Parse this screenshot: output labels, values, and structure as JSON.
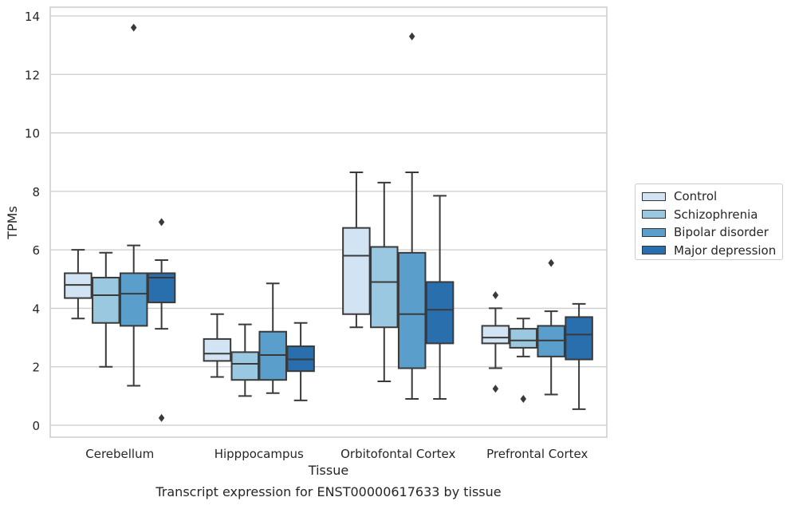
{
  "chart_data": {
    "type": "box",
    "title": "Transcript expression for ENST00000617633 by tissue",
    "xlabel": "Tissue",
    "ylabel": "TPMs",
    "ylim": [
      -0.4,
      14.4
    ],
    "yticks": [
      0,
      2,
      4,
      6,
      8,
      10,
      12,
      14
    ],
    "grid": "horizontal",
    "legend_position": "right",
    "categories": [
      "Cerebellum",
      "Hipppocampus",
      "Orbitofontal Cortex",
      "Prefrontal Cortex"
    ],
    "series": [
      {
        "name": "Control",
        "color": "#d2e3f3",
        "boxes": [
          {
            "whisker_low": 3.65,
            "q1": 4.35,
            "median": 4.8,
            "q3": 5.2,
            "whisker_high": 6.0,
            "outliers": []
          },
          {
            "whisker_low": 1.65,
            "q1": 2.2,
            "median": 2.45,
            "q3": 2.95,
            "whisker_high": 3.8,
            "outliers": []
          },
          {
            "whisker_low": 3.35,
            "q1": 3.8,
            "median": 5.8,
            "q3": 6.75,
            "whisker_high": 8.65,
            "outliers": []
          },
          {
            "whisker_low": 1.95,
            "q1": 2.8,
            "median": 3.0,
            "q3": 3.4,
            "whisker_high": 4.0,
            "outliers": [
              4.45,
              1.25
            ]
          }
        ]
      },
      {
        "name": "Schizophrenia",
        "color": "#9ac8e0",
        "boxes": [
          {
            "whisker_low": 2.0,
            "q1": 3.5,
            "median": 4.45,
            "q3": 5.05,
            "whisker_high": 5.9,
            "outliers": []
          },
          {
            "whisker_low": 1.0,
            "q1": 1.55,
            "median": 2.1,
            "q3": 2.5,
            "whisker_high": 3.45,
            "outliers": []
          },
          {
            "whisker_low": 1.5,
            "q1": 3.35,
            "median": 4.9,
            "q3": 6.1,
            "whisker_high": 8.3,
            "outliers": []
          },
          {
            "whisker_low": 2.35,
            "q1": 2.65,
            "median": 2.9,
            "q3": 3.3,
            "whisker_high": 3.65,
            "outliers": [
              0.9
            ]
          }
        ]
      },
      {
        "name": "Bipolar disorder",
        "color": "#5a9ecc",
        "boxes": [
          {
            "whisker_low": 1.35,
            "q1": 3.4,
            "median": 4.5,
            "q3": 5.2,
            "whisker_high": 6.15,
            "outliers": [
              13.6
            ]
          },
          {
            "whisker_low": 1.1,
            "q1": 1.55,
            "median": 2.4,
            "q3": 3.2,
            "whisker_high": 4.85,
            "outliers": []
          },
          {
            "whisker_low": 0.9,
            "q1": 1.95,
            "median": 3.8,
            "q3": 5.9,
            "whisker_high": 8.65,
            "outliers": [
              13.3
            ]
          },
          {
            "whisker_low": 1.05,
            "q1": 2.35,
            "median": 2.9,
            "q3": 3.4,
            "whisker_high": 3.9,
            "outliers": [
              5.55
            ]
          }
        ]
      },
      {
        "name": "Major depression",
        "color": "#2a6fad",
        "boxes": [
          {
            "whisker_low": 3.3,
            "q1": 4.2,
            "median": 5.05,
            "q3": 5.2,
            "whisker_high": 5.65,
            "outliers": [
              6.95,
              0.25
            ]
          },
          {
            "whisker_low": 0.85,
            "q1": 1.85,
            "median": 2.25,
            "q3": 2.7,
            "whisker_high": 3.5,
            "outliers": []
          },
          {
            "whisker_low": 0.9,
            "q1": 2.8,
            "median": 3.95,
            "q3": 4.9,
            "whisker_high": 7.85,
            "outliers": []
          },
          {
            "whisker_low": 0.55,
            "q1": 2.25,
            "median": 3.1,
            "q3": 3.7,
            "whisker_high": 4.15,
            "outliers": []
          }
        ]
      }
    ]
  }
}
